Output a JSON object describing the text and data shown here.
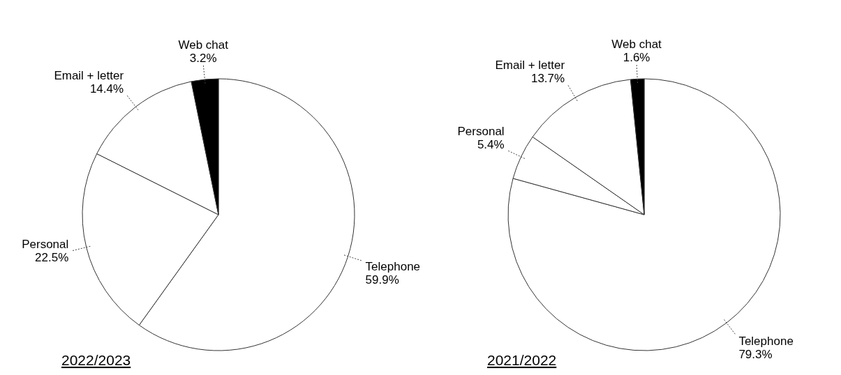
{
  "chart_data": [
    {
      "type": "pie",
      "title": "2022/2023",
      "categories": [
        "Telephone",
        "Personal",
        "Email + letter",
        "Web chat"
      ],
      "values": [
        59.9,
        22.5,
        14.4,
        3.2
      ],
      "value_labels": [
        "59.9%",
        "22.5%",
        "14.4%",
        "3.2%"
      ],
      "colors": [
        "#ffffff",
        "#ffffff",
        "#ffffff",
        "#000000"
      ]
    },
    {
      "type": "pie",
      "title": "2021/2022",
      "categories": [
        "Telephone",
        "Personal",
        "Email + letter",
        "Web chat"
      ],
      "values": [
        79.3,
        5.4,
        13.7,
        1.6
      ],
      "value_labels": [
        "79.3%",
        "5.4%",
        "13.7%",
        "1.6%"
      ],
      "colors": [
        "#ffffff",
        "#ffffff",
        "#ffffff",
        "#000000"
      ]
    }
  ]
}
